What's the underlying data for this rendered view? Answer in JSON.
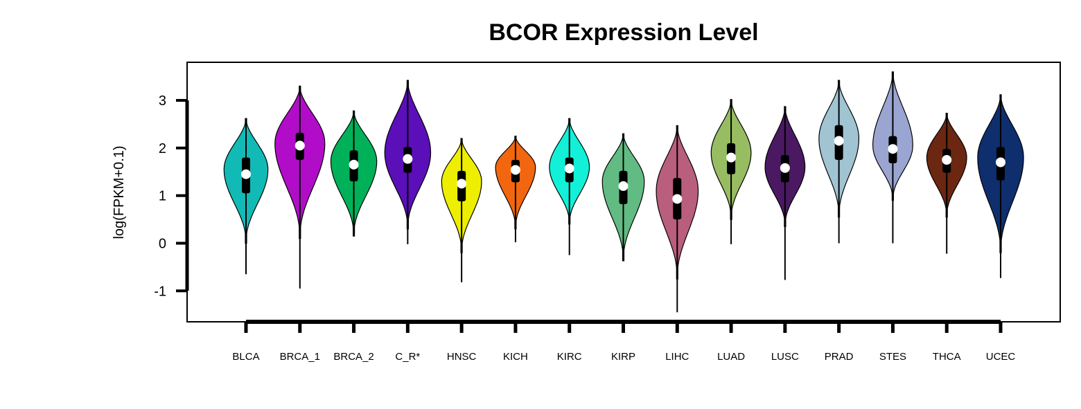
{
  "chart_data": {
    "type": "violin",
    "title": "BCOR Expression Level",
    "xlabel": "",
    "ylabel": "log(FPKM+0.1)",
    "ylim": [
      -1.65,
      3.8
    ],
    "yticks": [
      -1,
      0,
      1,
      2,
      3
    ],
    "ytick_labels": [
      "-1",
      "0",
      "1",
      "2",
      "3"
    ],
    "grid": false,
    "legend": "none",
    "categories": [
      "BLCA",
      "BRCA_1",
      "BRCA_2",
      "C_R*",
      "HNSC",
      "KICH",
      "KIRC",
      "KIRP",
      "LIHC",
      "LUAD",
      "LUSC",
      "PRAD",
      "STES",
      "THCA",
      "UCEC"
    ],
    "series": [
      {
        "category": "BLCA",
        "color": "#12BAB5",
        "min": -0.65,
        "violin_min": 0.0,
        "q1": 1.05,
        "median": 1.45,
        "q3": 1.8,
        "violin_max": 2.62,
        "max": 2.62,
        "mode": 1.55,
        "mode_width": 0.44
      },
      {
        "category": "BRCA_1",
        "color": "#B10DC9",
        "min": -0.95,
        "violin_min": 0.1,
        "q1": 1.75,
        "median": 2.05,
        "q3": 2.32,
        "violin_max": 3.3,
        "max": 3.3,
        "mode": 2.1,
        "mode_width": 0.5
      },
      {
        "category": "BRCA_2",
        "color": "#00B159",
        "min": 0.15,
        "violin_min": 0.15,
        "q1": 1.3,
        "median": 1.65,
        "q3": 1.95,
        "violin_max": 2.78,
        "max": 2.78,
        "mode": 1.72,
        "mode_width": 0.46
      },
      {
        "category": "C_R*",
        "color": "#5B0FB8",
        "min": -0.02,
        "violin_min": 0.3,
        "q1": 1.48,
        "median": 1.77,
        "q3": 2.02,
        "violin_max": 3.42,
        "max": 3.42,
        "mode": 1.9,
        "mode_width": 0.46
      },
      {
        "category": "HNSC",
        "color": "#EEEE00",
        "min": -0.82,
        "violin_min": -0.2,
        "q1": 0.88,
        "median": 1.25,
        "q3": 1.52,
        "violin_max": 2.2,
        "max": 2.2,
        "mode": 1.3,
        "mode_width": 0.4
      },
      {
        "category": "KICH",
        "color": "#F2660F",
        "min": 0.02,
        "violin_min": 0.3,
        "q1": 1.28,
        "median": 1.54,
        "q3": 1.75,
        "violin_max": 2.25,
        "max": 2.25,
        "mode": 1.6,
        "mode_width": 0.4
      },
      {
        "category": "KIRC",
        "color": "#12F0D8",
        "min": -0.25,
        "violin_min": 0.4,
        "q1": 1.28,
        "median": 1.57,
        "q3": 1.8,
        "violin_max": 2.62,
        "max": 2.62,
        "mode": 1.6,
        "mode_width": 0.4
      },
      {
        "category": "KIRP",
        "color": "#62BB82",
        "min": -0.37,
        "violin_min": -0.37,
        "q1": 0.82,
        "median": 1.2,
        "q3": 1.52,
        "violin_max": 2.3,
        "max": 2.3,
        "mode": 1.3,
        "mode_width": 0.42
      },
      {
        "category": "LIHC",
        "color": "#BA5E7D",
        "min": -1.45,
        "violin_min": -0.75,
        "q1": 0.5,
        "median": 0.93,
        "q3": 1.37,
        "violin_max": 2.47,
        "max": 2.47,
        "mode": 1.1,
        "mode_width": 0.42
      },
      {
        "category": "LUAD",
        "color": "#97BC62",
        "min": -0.02,
        "violin_min": 0.5,
        "q1": 1.45,
        "median": 1.8,
        "q3": 2.1,
        "violin_max": 3.02,
        "max": 3.02,
        "mode": 1.9,
        "mode_width": 0.4
      },
      {
        "category": "LUSC",
        "color": "#4A1962",
        "min": -0.77,
        "violin_min": 0.35,
        "q1": 1.28,
        "median": 1.58,
        "q3": 1.85,
        "violin_max": 2.87,
        "max": 2.87,
        "mode": 1.6,
        "mode_width": 0.4
      },
      {
        "category": "PRAD",
        "color": "#A1C4D3",
        "min": 0.0,
        "violin_min": 0.55,
        "q1": 1.75,
        "median": 2.15,
        "q3": 2.48,
        "violin_max": 3.42,
        "max": 3.42,
        "mode": 2.2,
        "mode_width": 0.4
      },
      {
        "category": "STES",
        "color": "#9AA5D1",
        "min": 0.0,
        "violin_min": 0.9,
        "q1": 1.68,
        "median": 1.98,
        "q3": 2.25,
        "violin_max": 3.6,
        "max": 3.6,
        "mode": 2.05,
        "mode_width": 0.4
      },
      {
        "category": "THCA",
        "color": "#6B2712",
        "min": -0.22,
        "violin_min": 0.55,
        "q1": 1.48,
        "median": 1.75,
        "q3": 1.98,
        "violin_max": 2.73,
        "max": 2.73,
        "mode": 1.8,
        "mode_width": 0.4
      },
      {
        "category": "UCEC",
        "color": "#0E2E6E",
        "min": -0.73,
        "violin_min": -0.2,
        "q1": 1.32,
        "median": 1.7,
        "q3": 2.02,
        "violin_max": 3.12,
        "max": 3.12,
        "mode": 1.8,
        "mode_width": 0.46
      }
    ]
  }
}
